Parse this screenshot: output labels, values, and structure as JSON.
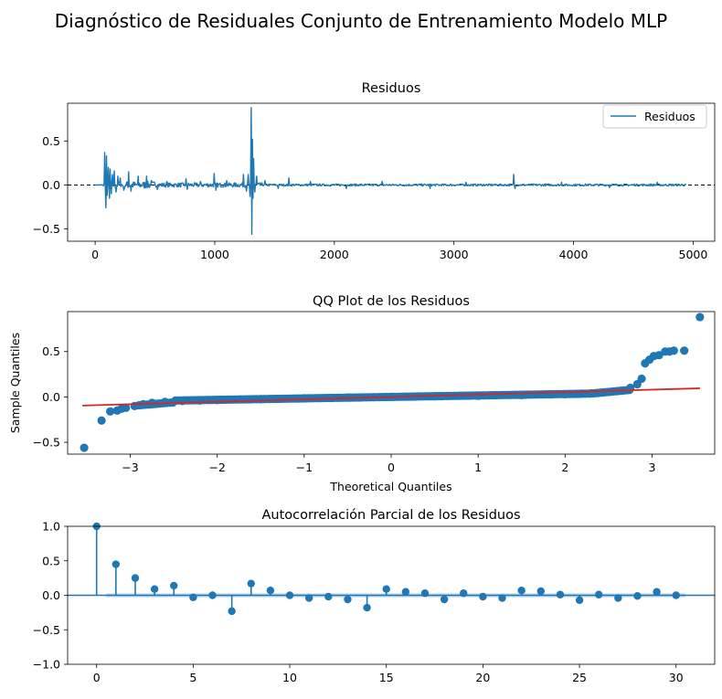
{
  "figure": {
    "suptitle": "Diagnóstico de Residuales Conjunto de Entrenamiento Modelo MLP"
  },
  "colors": {
    "series": "#1f77b4",
    "reference_line": "#d62728",
    "zero_line": "#000000",
    "confidence_band": "#a6c5e4"
  },
  "chart_data": [
    {
      "type": "line",
      "title": "Residuos",
      "xlabel": "",
      "ylabel": "",
      "xlim": [
        -230,
        5180
      ],
      "ylim": [
        -0.64,
        0.93
      ],
      "xticks": [
        0,
        1000,
        2000,
        3000,
        4000,
        5000
      ],
      "xtick_labels": [
        "0",
        "1000",
        "2000",
        "3000",
        "4000",
        "5000"
      ],
      "yticks": [
        -0.5,
        0.0,
        0.5
      ],
      "ytick_labels": [
        "−0.5",
        "0.0",
        "0.5"
      ],
      "grid": false,
      "legend": {
        "position": "top-right",
        "entries": [
          "Residuos"
        ]
      },
      "hline": {
        "y": 0,
        "style": "dashed"
      },
      "x_range": [
        0,
        4940
      ],
      "spikes": [
        {
          "x": 80,
          "y": 0.37
        },
        {
          "x": 88,
          "y": -0.26
        },
        {
          "x": 95,
          "y": 0.33
        },
        {
          "x": 102,
          "y": -0.12
        },
        {
          "x": 110,
          "y": 0.2
        },
        {
          "x": 118,
          "y": -0.15
        },
        {
          "x": 125,
          "y": 0.18
        },
        {
          "x": 135,
          "y": -0.1
        },
        {
          "x": 145,
          "y": 0.12
        },
        {
          "x": 160,
          "y": 0.16
        },
        {
          "x": 175,
          "y": -0.08
        },
        {
          "x": 190,
          "y": 0.1
        },
        {
          "x": 210,
          "y": 0.08
        },
        {
          "x": 240,
          "y": -0.06
        },
        {
          "x": 280,
          "y": 0.15
        },
        {
          "x": 300,
          "y": -0.07
        },
        {
          "x": 360,
          "y": 0.1
        },
        {
          "x": 430,
          "y": 0.1
        },
        {
          "x": 470,
          "y": 0.05
        },
        {
          "x": 520,
          "y": -0.05
        },
        {
          "x": 600,
          "y": 0.04
        },
        {
          "x": 760,
          "y": 0.07
        },
        {
          "x": 770,
          "y": -0.05
        },
        {
          "x": 880,
          "y": 0.04
        },
        {
          "x": 995,
          "y": 0.13
        },
        {
          "x": 1010,
          "y": -0.06
        },
        {
          "x": 1100,
          "y": 0.05
        },
        {
          "x": 1240,
          "y": 0.12
        },
        {
          "x": 1265,
          "y": -0.07
        },
        {
          "x": 1280,
          "y": 0.12
        },
        {
          "x": 1295,
          "y": -0.13
        },
        {
          "x": 1300,
          "y": 0.06
        },
        {
          "x": 1305,
          "y": 0.88
        },
        {
          "x": 1310,
          "y": -0.56
        },
        {
          "x": 1315,
          "y": 0.52
        },
        {
          "x": 1320,
          "y": -0.15
        },
        {
          "x": 1325,
          "y": 0.3
        },
        {
          "x": 1335,
          "y": -0.08
        },
        {
          "x": 1350,
          "y": 0.1
        },
        {
          "x": 1420,
          "y": 0.05
        },
        {
          "x": 1530,
          "y": -0.04
        },
        {
          "x": 1620,
          "y": 0.08
        },
        {
          "x": 1800,
          "y": 0.04
        },
        {
          "x": 2100,
          "y": -0.04
        },
        {
          "x": 2400,
          "y": 0.04
        },
        {
          "x": 2800,
          "y": -0.04
        },
        {
          "x": 3100,
          "y": 0.03
        },
        {
          "x": 3500,
          "y": 0.12
        },
        {
          "x": 3510,
          "y": -0.04
        },
        {
          "x": 3900,
          "y": 0.03
        },
        {
          "x": 4300,
          "y": -0.03
        },
        {
          "x": 4700,
          "y": 0.03
        }
      ]
    },
    {
      "type": "scatter",
      "title": "QQ Plot de los Residuos",
      "xlabel": "Theoretical Quantiles",
      "ylabel": "Sample Quantiles",
      "xlim": [
        -3.72,
        3.72
      ],
      "ylim": [
        -0.63,
        0.94
      ],
      "xticks": [
        -3,
        -2,
        -1,
        0,
        1,
        2,
        3
      ],
      "xtick_labels": [
        "−3",
        "−2",
        "−1",
        "0",
        "1",
        "2",
        "3"
      ],
      "yticks": [
        -0.5,
        0.0,
        0.5
      ],
      "ytick_labels": [
        "−0.5",
        "0.0",
        "0.5"
      ],
      "grid": false,
      "reference_line": {
        "x": [
          -3.55,
          3.55
        ],
        "y": [
          -0.095,
          0.095
        ]
      },
      "points": [
        {
          "x": -3.53,
          "y": -0.56
        },
        {
          "x": -3.33,
          "y": -0.26
        },
        {
          "x": -3.23,
          "y": -0.16
        },
        {
          "x": -3.15,
          "y": -0.15
        },
        {
          "x": -3.1,
          "y": -0.13
        },
        {
          "x": -3.05,
          "y": -0.12
        },
        {
          "x": -2.95,
          "y": -0.1
        },
        {
          "x": -2.85,
          "y": -0.08
        },
        {
          "x": -2.75,
          "y": -0.065
        },
        {
          "x": -2.6,
          "y": -0.055
        },
        {
          "x": -2.4,
          "y": -0.045
        },
        {
          "x": -2.2,
          "y": -0.04
        },
        {
          "x": -2.0,
          "y": -0.035
        },
        {
          "x": -1.5,
          "y": -0.025
        },
        {
          "x": -1.0,
          "y": -0.015
        },
        {
          "x": -0.5,
          "y": -0.007
        },
        {
          "x": 0.0,
          "y": 0.0
        },
        {
          "x": 0.5,
          "y": 0.006
        },
        {
          "x": 1.0,
          "y": 0.012
        },
        {
          "x": 1.5,
          "y": 0.02
        },
        {
          "x": 2.0,
          "y": 0.03
        },
        {
          "x": 2.3,
          "y": 0.04
        },
        {
          "x": 2.5,
          "y": 0.055
        },
        {
          "x": 2.65,
          "y": 0.07
        },
        {
          "x": 2.75,
          "y": 0.1
        },
        {
          "x": 2.83,
          "y": 0.14
        },
        {
          "x": 2.88,
          "y": 0.2
        },
        {
          "x": 2.92,
          "y": 0.37
        },
        {
          "x": 2.97,
          "y": 0.41
        },
        {
          "x": 3.02,
          "y": 0.45
        },
        {
          "x": 3.08,
          "y": 0.46
        },
        {
          "x": 3.15,
          "y": 0.5
        },
        {
          "x": 3.2,
          "y": 0.5
        },
        {
          "x": 3.25,
          "y": 0.51
        },
        {
          "x": 3.37,
          "y": 0.51
        },
        {
          "x": 3.55,
          "y": 0.88
        }
      ]
    },
    {
      "type": "stem",
      "title": "Autocorrelación Parcial de los Residuos",
      "xlabel": "",
      "ylabel": "",
      "xlim": [
        -1.5,
        32
      ],
      "ylim": [
        -1.0,
        1.0
      ],
      "xticks": [
        0,
        5,
        10,
        15,
        20,
        25,
        30
      ],
      "xtick_labels": [
        "0",
        "5",
        "10",
        "15",
        "20",
        "25",
        "30"
      ],
      "yticks": [
        -1.0,
        -0.5,
        0.0,
        0.5,
        1.0
      ],
      "ytick_labels": [
        "−1.0",
        "−0.5",
        "0.0",
        "0.5",
        "1.0"
      ],
      "grid": false,
      "confidence_interval": [
        -0.028,
        0.028
      ],
      "lags": [
        0,
        1,
        2,
        3,
        4,
        5,
        6,
        7,
        8,
        9,
        10,
        11,
        12,
        13,
        14,
        15,
        16,
        17,
        18,
        19,
        20,
        21,
        22,
        23,
        24,
        25,
        26,
        27,
        28,
        29,
        30
      ],
      "values": [
        1.0,
        0.45,
        0.25,
        0.09,
        0.14,
        -0.03,
        0.0,
        -0.23,
        0.17,
        0.07,
        0.0,
        -0.04,
        -0.02,
        -0.06,
        -0.18,
        0.09,
        0.05,
        0.03,
        -0.06,
        0.03,
        -0.02,
        -0.04,
        0.07,
        0.06,
        0.01,
        -0.07,
        0.01,
        -0.04,
        -0.01,
        0.05,
        0.0
      ]
    }
  ]
}
